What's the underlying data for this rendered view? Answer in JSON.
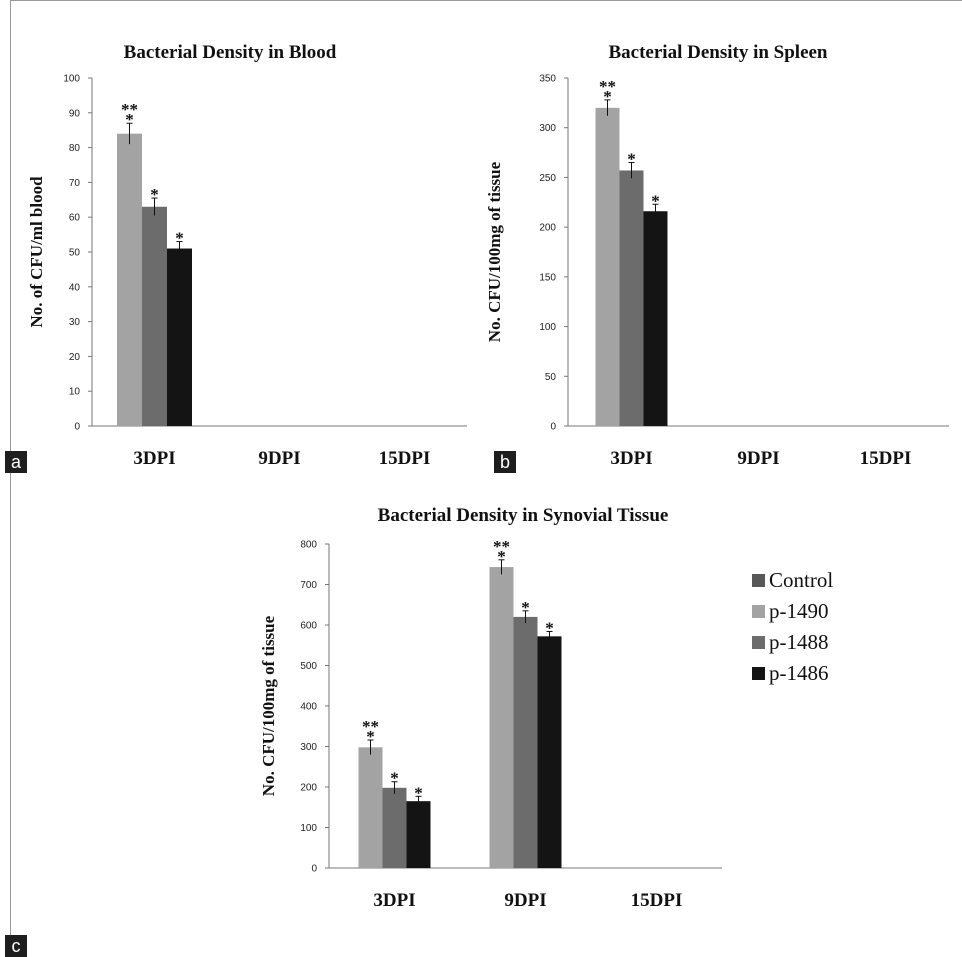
{
  "panel_labels": [
    "a",
    "b",
    "c"
  ],
  "colors": {
    "control": "#585858",
    "p-1490": "#a3a3a3",
    "p-1488": "#6c6c6c",
    "p-1486": "#141414"
  },
  "legend": [
    {
      "key": "control",
      "label": "Control"
    },
    {
      "key": "p-1490",
      "label": "p-1490"
    },
    {
      "key": "p-1488",
      "label": "p-1488"
    },
    {
      "key": "p-1486",
      "label": "p-1486"
    }
  ],
  "chart_data": [
    {
      "type": "bar",
      "panel": "a",
      "title": "Bacterial Density in Blood",
      "ylabel": "No. of CFU/ml blood",
      "xlabel": "",
      "categories": [
        "3DPI",
        "9DPI",
        "15DPI"
      ],
      "ylim": [
        0,
        100
      ],
      "yticks": [
        0,
        10,
        20,
        30,
        40,
        50,
        60,
        70,
        80,
        90,
        100
      ],
      "grid": false,
      "series": [
        {
          "key": "p-1490",
          "values": [
            84,
            0,
            0
          ],
          "errors": [
            3,
            0,
            0
          ],
          "marks": [
            "**\n*",
            "",
            ""
          ]
        },
        {
          "key": "p-1488",
          "values": [
            63,
            0,
            0
          ],
          "errors": [
            2.5,
            0,
            0
          ],
          "marks": [
            "*",
            "",
            ""
          ]
        },
        {
          "key": "p-1486",
          "values": [
            51,
            0,
            0
          ],
          "errors": [
            2,
            0,
            0
          ],
          "marks": [
            "*",
            "",
            ""
          ]
        }
      ]
    },
    {
      "type": "bar",
      "panel": "b",
      "title": "Bacterial Density in Spleen",
      "ylabel": "No. CFU/100mg of tissue",
      "xlabel": "",
      "categories": [
        "3DPI",
        "9DPI",
        "15DPI"
      ],
      "ylim": [
        0,
        350
      ],
      "yticks": [
        0,
        50,
        100,
        150,
        200,
        250,
        300,
        350
      ],
      "grid": false,
      "series": [
        {
          "key": "p-1490",
          "values": [
            320,
            0,
            0
          ],
          "errors": [
            8,
            0,
            0
          ],
          "marks": [
            "**\n*",
            "",
            ""
          ]
        },
        {
          "key": "p-1488",
          "values": [
            257,
            0,
            0
          ],
          "errors": [
            8,
            0,
            0
          ],
          "marks": [
            "*",
            "",
            ""
          ]
        },
        {
          "key": "p-1486",
          "values": [
            216,
            0,
            0
          ],
          "errors": [
            7,
            0,
            0
          ],
          "marks": [
            "*",
            "",
            ""
          ]
        }
      ]
    },
    {
      "type": "bar",
      "panel": "c",
      "title": "Bacterial Density in Synovial Tissue",
      "ylabel": "No. CFU/100mg of tissue",
      "xlabel": "",
      "categories": [
        "3DPI",
        "9DPI",
        "15DPI"
      ],
      "ylim": [
        0,
        800
      ],
      "yticks": [
        0,
        100,
        200,
        300,
        400,
        500,
        600,
        700,
        800
      ],
      "grid": false,
      "legend_position": "right",
      "series": [
        {
          "key": "p-1490",
          "values": [
            298,
            743,
            0
          ],
          "errors": [
            18,
            18,
            0
          ],
          "marks": [
            "**\n*",
            "**\n*",
            ""
          ]
        },
        {
          "key": "p-1488",
          "values": [
            198,
            620,
            0
          ],
          "errors": [
            15,
            15,
            0
          ],
          "marks": [
            "*",
            "*",
            ""
          ]
        },
        {
          "key": "p-1486",
          "values": [
            165,
            572,
            0
          ],
          "errors": [
            12,
            12,
            0
          ],
          "marks": [
            "*",
            "*",
            ""
          ]
        }
      ]
    }
  ]
}
